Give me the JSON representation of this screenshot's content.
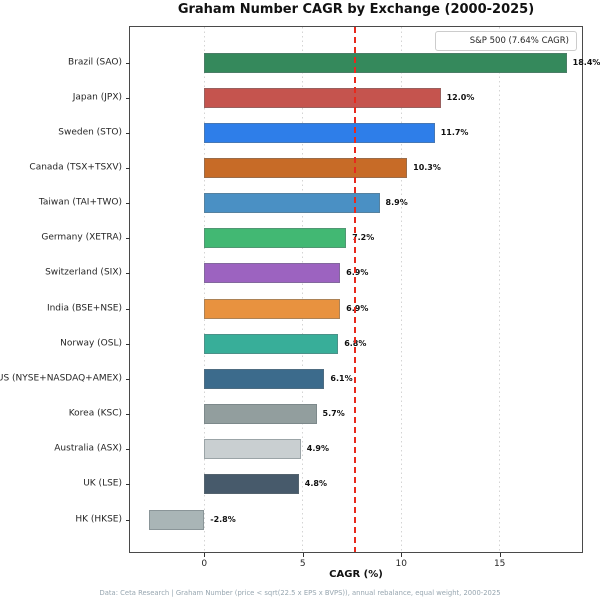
{
  "title": "Graham Number CAGR by Exchange (2000-2025)",
  "legend": {
    "label": "S&P 500 (7.64% CAGR)"
  },
  "footer": "Data: Ceta Research | Graham Number (price < sqrt(22.5 x EPS x BVPS)), annual rebalance, equal weight, 2000-2025",
  "chart_data": {
    "type": "bar",
    "orientation": "horizontal",
    "title": "Graham Number CAGR by Exchange (2000-2025)",
    "xlabel": "CAGR (%)",
    "ylabel": "",
    "categories": [
      "Brazil (SAO)",
      "Japan (JPX)",
      "Sweden (STO)",
      "Canada (TSX+TSXV)",
      "Taiwan (TAI+TWO)",
      "Germany (XETRA)",
      "Switzerland (SIX)",
      "India (BSE+NSE)",
      "Norway (OSL)",
      "US (NYSE+NASDAQ+AMEX)",
      "Korea (KSC)",
      "Australia (ASX)",
      "UK (LSE)",
      "HK (HKSE)"
    ],
    "values": [
      18.4,
      12.0,
      11.7,
      10.3,
      8.9,
      7.2,
      6.9,
      6.9,
      6.8,
      6.1,
      5.7,
      4.9,
      4.8,
      -2.8
    ],
    "value_labels": [
      "18.4%",
      "12.0%",
      "11.7%",
      "10.3%",
      "8.9%",
      "7.2%",
      "6.9%",
      "6.9%",
      "6.8%",
      "6.1%",
      "5.7%",
      "4.9%",
      "4.8%",
      "-2.8%"
    ],
    "bar_colors": [
      "#35895c",
      "#c5544e",
      "#2e7ee9",
      "#c76b27",
      "#4a90c4",
      "#42b873",
      "#9c63c0",
      "#e8923f",
      "#38ae99",
      "#3c6b8c",
      "#929e9e",
      "#c9cfd1",
      "#475a6b",
      "#a9b5b6"
    ],
    "reference_line": {
      "value": 7.64,
      "label": "S&P 500 (7.64% CAGR)",
      "color": "#e8291c",
      "style": "dashed"
    },
    "x_ticks": [
      0,
      5,
      10,
      15
    ],
    "x_tick_labels": [
      "0",
      "5",
      "10",
      "15"
    ],
    "xlim": [
      -3.77,
      19.28
    ],
    "grid": "vertical dotted lines at x ticks",
    "legend_position": "upper right"
  }
}
